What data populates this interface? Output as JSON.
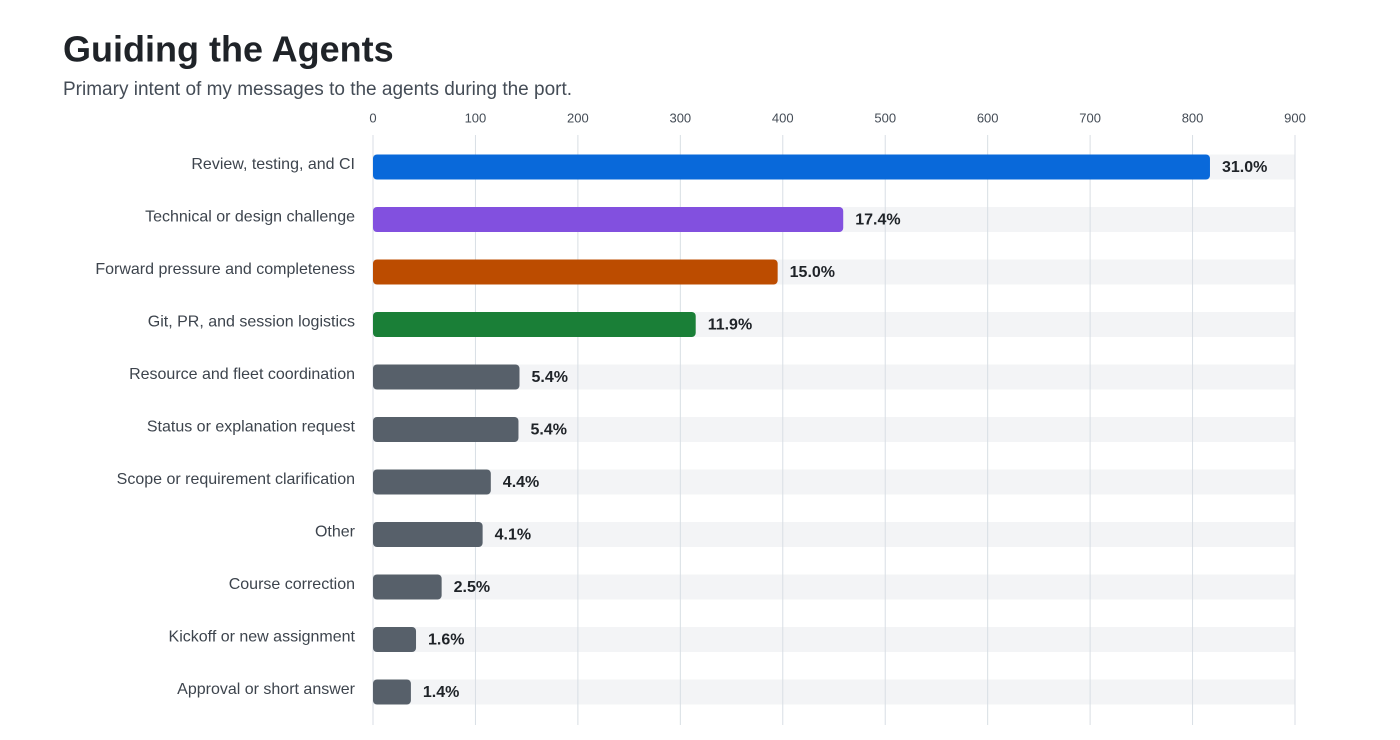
{
  "chart_data": {
    "type": "bar",
    "orientation": "horizontal",
    "title": "Guiding the Agents",
    "subtitle": "Primary intent of my messages to the agents during the port.",
    "categories": [
      "Review, testing, and CI",
      "Technical or design challenge",
      "Forward pressure and completeness",
      "Git, PR, and session logistics",
      "Resource and fleet coordination",
      "Status or explanation request",
      "Scope or requirement clarification",
      "Other",
      "Course correction",
      "Kickoff or new assignment",
      "Approval or short answer"
    ],
    "values": [
      817,
      459,
      395,
      315,
      143,
      142,
      115,
      107,
      67,
      42,
      37
    ],
    "value_labels": [
      "31.0%",
      "17.4%",
      "15.0%",
      "11.9%",
      "5.4%",
      "5.4%",
      "4.4%",
      "4.1%",
      "2.5%",
      "1.6%",
      "1.4%"
    ],
    "colors": [
      "#0969da",
      "#8250df",
      "#bc4c00",
      "#1a7f37",
      "#57606a",
      "#57606a",
      "#57606a",
      "#57606a",
      "#57606a",
      "#57606a",
      "#57606a"
    ],
    "xlim": [
      0,
      900
    ],
    "xticks": [
      0,
      100,
      200,
      300,
      400,
      500,
      600,
      700,
      800,
      900
    ],
    "grid": true
  }
}
